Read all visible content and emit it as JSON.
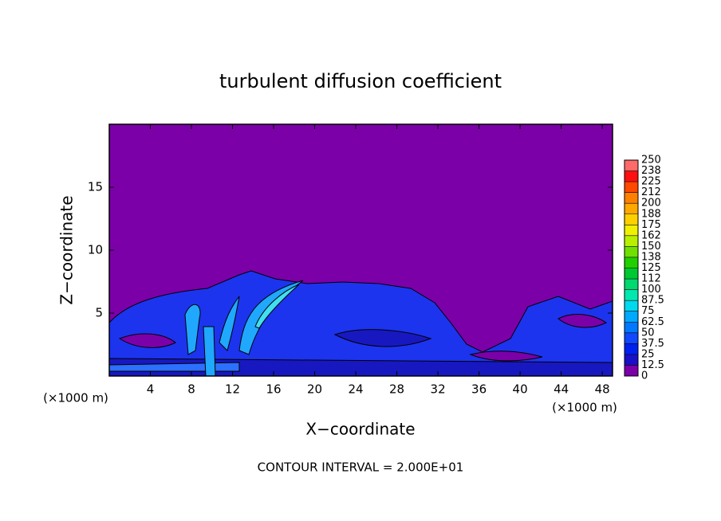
{
  "chart_data": {
    "type": "contour",
    "title": "turbulent diffusion coefficient",
    "xlabel": "X−coordinate",
    "ylabel": "Z−coordinate",
    "x_unit": "(×1000 m)",
    "note": "CONTOUR INTERVAL = 2.000E+01",
    "xlim": [
      0,
      49
    ],
    "xticks": [
      4,
      8,
      12,
      16,
      20,
      24,
      28,
      32,
      36,
      40,
      44,
      48
    ],
    "ylim": [
      0,
      20
    ],
    "yticks": [
      5,
      10,
      15
    ],
    "background_color": "#7b00a8",
    "colorbar": {
      "ticks": [
        0,
        12.5,
        25,
        37.5,
        50,
        62.5,
        75,
        87.5,
        100,
        {
          "value": 112.5,
          "label": "112"
        },
        125,
        {
          "value": 137.5,
          "label": "138"
        },
        150,
        {
          "value": 162.5,
          "label": "162"
        },
        175,
        {
          "value": 187.5,
          "label": "188"
        },
        200,
        {
          "value": 212.5,
          "label": "212"
        },
        225,
        {
          "value": 237.5,
          "label": "238"
        },
        250
      ],
      "colors": [
        "#7b00a8",
        "#1a10c8",
        "#0020f0",
        "#1048ff",
        "#0078ff",
        "#00a8ff",
        "#00d8f0",
        "#00e8b0",
        "#00d870",
        "#00c830",
        "#20d000",
        "#70e000",
        "#b8f000",
        "#f0f000",
        "#ffd000",
        "#ffa800",
        "#ff8000",
        "#ff4800",
        "#ff1010",
        "#ff6a6a"
      ]
    }
  }
}
